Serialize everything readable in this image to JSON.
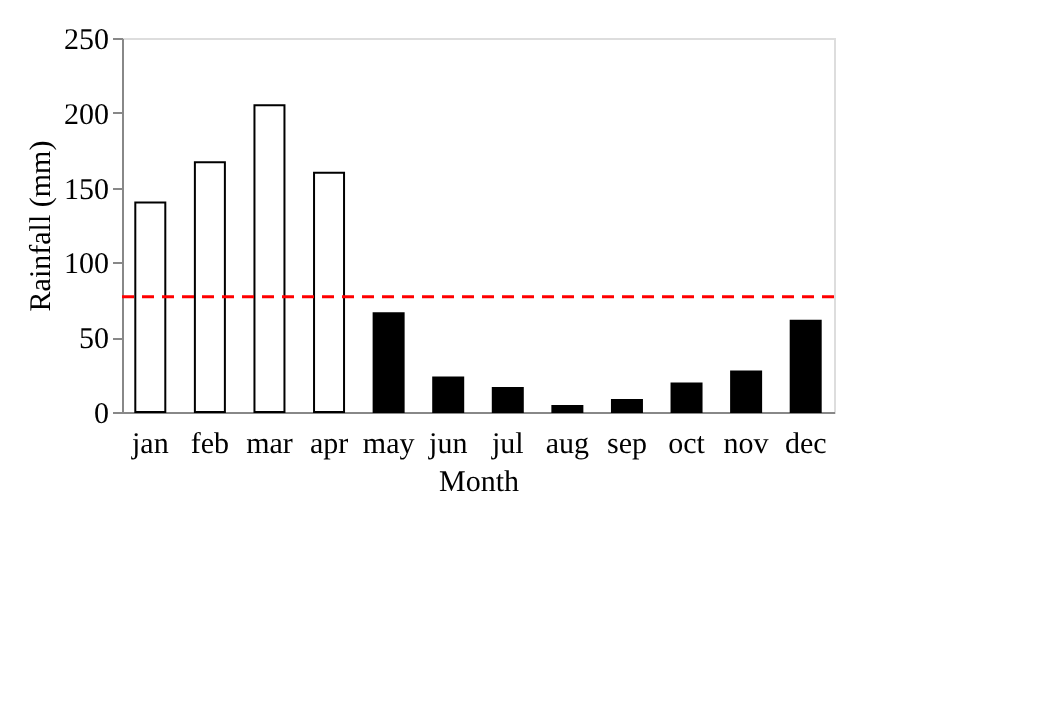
{
  "chart_data": {
    "type": "bar",
    "xlabel": "Month",
    "ylabel": "Rainfall (mm)",
    "categories": [
      "jan",
      "feb",
      "mar",
      "apr",
      "may",
      "jun",
      "jul",
      "aug",
      "sep",
      "oct",
      "nov",
      "dec"
    ],
    "values": [
      140,
      167,
      205,
      160,
      66,
      23,
      16,
      4,
      8,
      19,
      27,
      61
    ],
    "colors": [
      "#ffffff",
      "#ffffff",
      "#ffffff",
      "#ffffff",
      "#000000",
      "#000000",
      "#000000",
      "#000000",
      "#000000",
      "#000000",
      "#000000",
      "#000000"
    ],
    "ylim": [
      0,
      250
    ],
    "yticks": [
      0,
      50,
      100,
      150,
      200,
      250
    ],
    "grid": false,
    "ref_lines": [
      {
        "axis": "y",
        "value": 77,
        "color": "#ff0000",
        "line_style": "dashed"
      }
    ]
  }
}
